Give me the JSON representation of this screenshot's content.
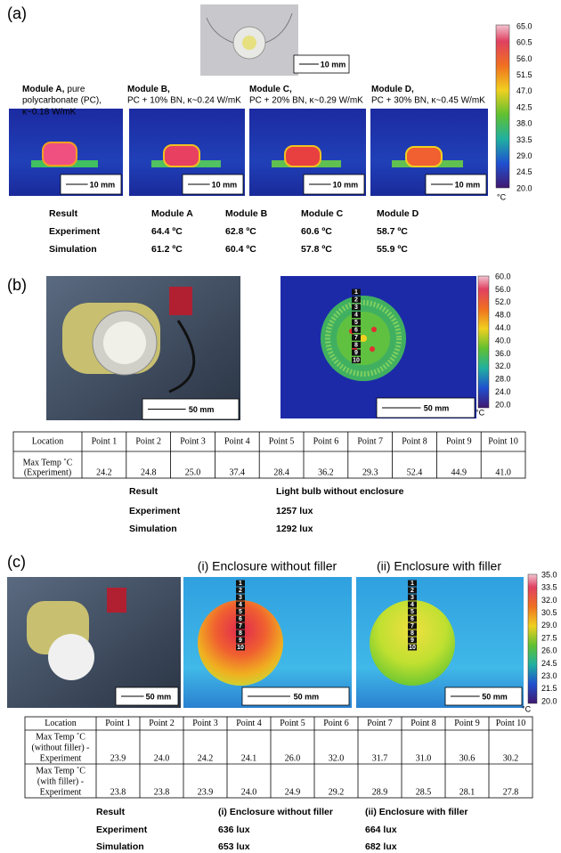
{
  "panel_a": {
    "label": "(a)",
    "photo_scale": "10 mm",
    "modules": [
      {
        "name": "Module A,",
        "name_suffix": "pure",
        "lines": [
          "polycarbonate (PC),",
          "κ~0.18 W/mK"
        ],
        "scale": "10 mm"
      },
      {
        "name": "Module B,",
        "lines": [
          "PC + 10% BN, κ~0.24 W/mK"
        ],
        "scale": "10 mm"
      },
      {
        "name": "Module C,",
        "lines": [
          "PC + 20% BN, κ~0.29 W/mK"
        ],
        "scale": "10 mm"
      },
      {
        "name": "Module D,",
        "lines": [
          "PC + 30% BN, κ~0.45 W/mK"
        ],
        "scale": "10 mm"
      }
    ],
    "colorbar": {
      "ticks": [
        "65.0",
        "60.5",
        "56.0",
        "51.5",
        "47.0",
        "42.5",
        "38.0",
        "33.5",
        "29.0",
        "24.5",
        "20.0"
      ],
      "unit": "°C"
    },
    "results": {
      "header": [
        "Result",
        "Module A",
        "Module B",
        "Module C",
        "Module D"
      ],
      "rows": [
        [
          "Experiment",
          "64.4 ºC",
          "62.8 ºC",
          "60.6 ºC",
          "58.7 ºC"
        ],
        [
          "Simulation",
          "61.2 ºC",
          "60.4 ºC",
          "57.8 ºC",
          "55.9 ºC"
        ]
      ]
    }
  },
  "panel_b": {
    "label": "(b)",
    "photo_scale": "50 mm",
    "thermal_scale": "50 mm",
    "markers": [
      "1",
      "2",
      "3",
      "4",
      "5",
      "6",
      "7",
      "8",
      "9",
      "10"
    ],
    "colorbar": {
      "ticks": [
        "60.0",
        "56.0",
        "52.0",
        "48.0",
        "44.0",
        "40.0",
        "36.0",
        "32.0",
        "28.0",
        "24.0",
        "20.0"
      ],
      "unit": "°C"
    },
    "table": {
      "header": [
        "Location",
        "Point 1",
        "Point 2",
        "Point 3",
        "Point 4",
        "Point 5",
        "Point 6",
        "Point 7",
        "Point 8",
        "Point 9",
        "Point 10"
      ],
      "rows": [
        {
          "label": [
            "Max Temp ˚C",
            "(Experiment)"
          ],
          "values": [
            "24.2",
            "24.8",
            "25.0",
            "37.4",
            "28.4",
            "36.2",
            "29.3",
            "52.4",
            "44.9",
            "41.0"
          ]
        }
      ]
    },
    "results": {
      "header": [
        "Result",
        "Light bulb without enclosure"
      ],
      "rows": [
        [
          "Experiment",
          "1257 lux"
        ],
        [
          "Simulation",
          "1292 lux"
        ]
      ]
    }
  },
  "panel_c": {
    "label": "(c)",
    "titles": [
      "(i) Enclosure without filler",
      "(ii) Enclosure with filler"
    ],
    "photo_scale": "50 mm",
    "thermal_scales": [
      "50 mm",
      "50 mm"
    ],
    "markers": [
      "1",
      "2",
      "3",
      "4",
      "5",
      "6",
      "7",
      "8",
      "9",
      "10"
    ],
    "colorbar": {
      "ticks": [
        "35.0",
        "33.5",
        "32.0",
        "30.5",
        "29.0",
        "27.5",
        "26.0",
        "24.5",
        "23.0",
        "21.5",
        "20.0"
      ],
      "unit": "°C"
    },
    "table": {
      "header": [
        "Location",
        "Point 1",
        "Point 2",
        "Point 3",
        "Point 4",
        "Point 5",
        "Point 6",
        "Point 7",
        "Point 8",
        "Point 9",
        "Point 10"
      ],
      "rows": [
        {
          "label": [
            "Max Temp ˚C",
            "(without filler) -",
            "Experiment"
          ],
          "values": [
            "23.9",
            "24.0",
            "24.2",
            "24.1",
            "26.0",
            "32.0",
            "31.7",
            "31.0",
            "30.6",
            "30.2"
          ]
        },
        {
          "label": [
            "Max Temp ˚C",
            "(with filler) -",
            "Experiment"
          ],
          "values": [
            "23.8",
            "23.8",
            "23.9",
            "24.0",
            "24.9",
            "29.2",
            "28.9",
            "28.5",
            "28.1",
            "27.8"
          ]
        }
      ]
    },
    "results": {
      "header": [
        "Result",
        "(i) Enclosure without filler",
        "(ii) Enclosure with filler"
      ],
      "rows": [
        [
          "Experiment",
          "636 lux",
          "664 lux"
        ],
        [
          "Simulation",
          "653 lux",
          "682 lux"
        ]
      ]
    }
  }
}
